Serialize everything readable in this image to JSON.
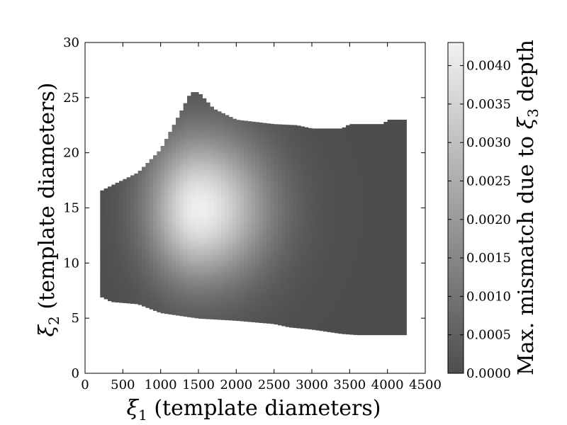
{
  "chart_data": {
    "type": "heatmap",
    "title": "",
    "xlabel_symbol": "ξ",
    "xlabel_sub": "1",
    "xlabel_text": " (template diameters)",
    "ylabel_symbol": "ξ",
    "ylabel_sub": "2",
    "ylabel_text": " (template diameters)",
    "colorbar_label_pre": "Max. mismatch due to ",
    "colorbar_label_symbol": "ξ",
    "colorbar_label_sub": "3",
    "colorbar_label_post": " depth",
    "xlim": [
      0,
      4500
    ],
    "ylim": [
      0,
      30
    ],
    "xticks": [
      0,
      500,
      1000,
      1500,
      2000,
      2500,
      3000,
      3500,
      4000,
      4500
    ],
    "yticks": [
      0,
      5,
      10,
      15,
      20,
      25,
      30
    ],
    "colorbar_range": [
      0.0,
      0.0043
    ],
    "colorbar_ticks": [
      "0.0000",
      "0.0005",
      "0.0010",
      "0.0015",
      "0.0020",
      "0.0025",
      "0.0030",
      "0.0035",
      "0.0040"
    ],
    "colormap": {
      "low": "#4d4d4d",
      "high": "#f2f2f2"
    },
    "grid": false,
    "region_top_boundary": [
      {
        "x": 200,
        "y": 16.5
      },
      {
        "x": 400,
        "y": 17.2
      },
      {
        "x": 700,
        "y": 18.2
      },
      {
        "x": 1000,
        "y": 20.3
      },
      {
        "x": 1250,
        "y": 23.5
      },
      {
        "x": 1400,
        "y": 25.5
      },
      {
        "x": 1500,
        "y": 25.5
      },
      {
        "x": 1700,
        "y": 24.0
      },
      {
        "x": 2000,
        "y": 23.0
      },
      {
        "x": 2500,
        "y": 22.6
      },
      {
        "x": 2800,
        "y": 22.5
      },
      {
        "x": 3000,
        "y": 22.2
      },
      {
        "x": 3400,
        "y": 22.2
      },
      {
        "x": 3500,
        "y": 22.6
      },
      {
        "x": 3950,
        "y": 22.6
      },
      {
        "x": 4000,
        "y": 23.0
      },
      {
        "x": 4250,
        "y": 23.0
      }
    ],
    "region_bottom_boundary": [
      {
        "x": 200,
        "y": 7.0
      },
      {
        "x": 350,
        "y": 6.5
      },
      {
        "x": 700,
        "y": 6.3
      },
      {
        "x": 1000,
        "y": 5.5
      },
      {
        "x": 1500,
        "y": 5.0
      },
      {
        "x": 2000,
        "y": 4.8
      },
      {
        "x": 2500,
        "y": 4.5
      },
      {
        "x": 2700,
        "y": 4.2
      },
      {
        "x": 3000,
        "y": 4.0
      },
      {
        "x": 3400,
        "y": 3.6
      },
      {
        "x": 3600,
        "y": 3.5
      },
      {
        "x": 4000,
        "y": 3.5
      },
      {
        "x": 4250,
        "y": 3.5
      }
    ],
    "peak": {
      "x": 1500,
      "y": 15.0,
      "value": 0.0042
    }
  }
}
